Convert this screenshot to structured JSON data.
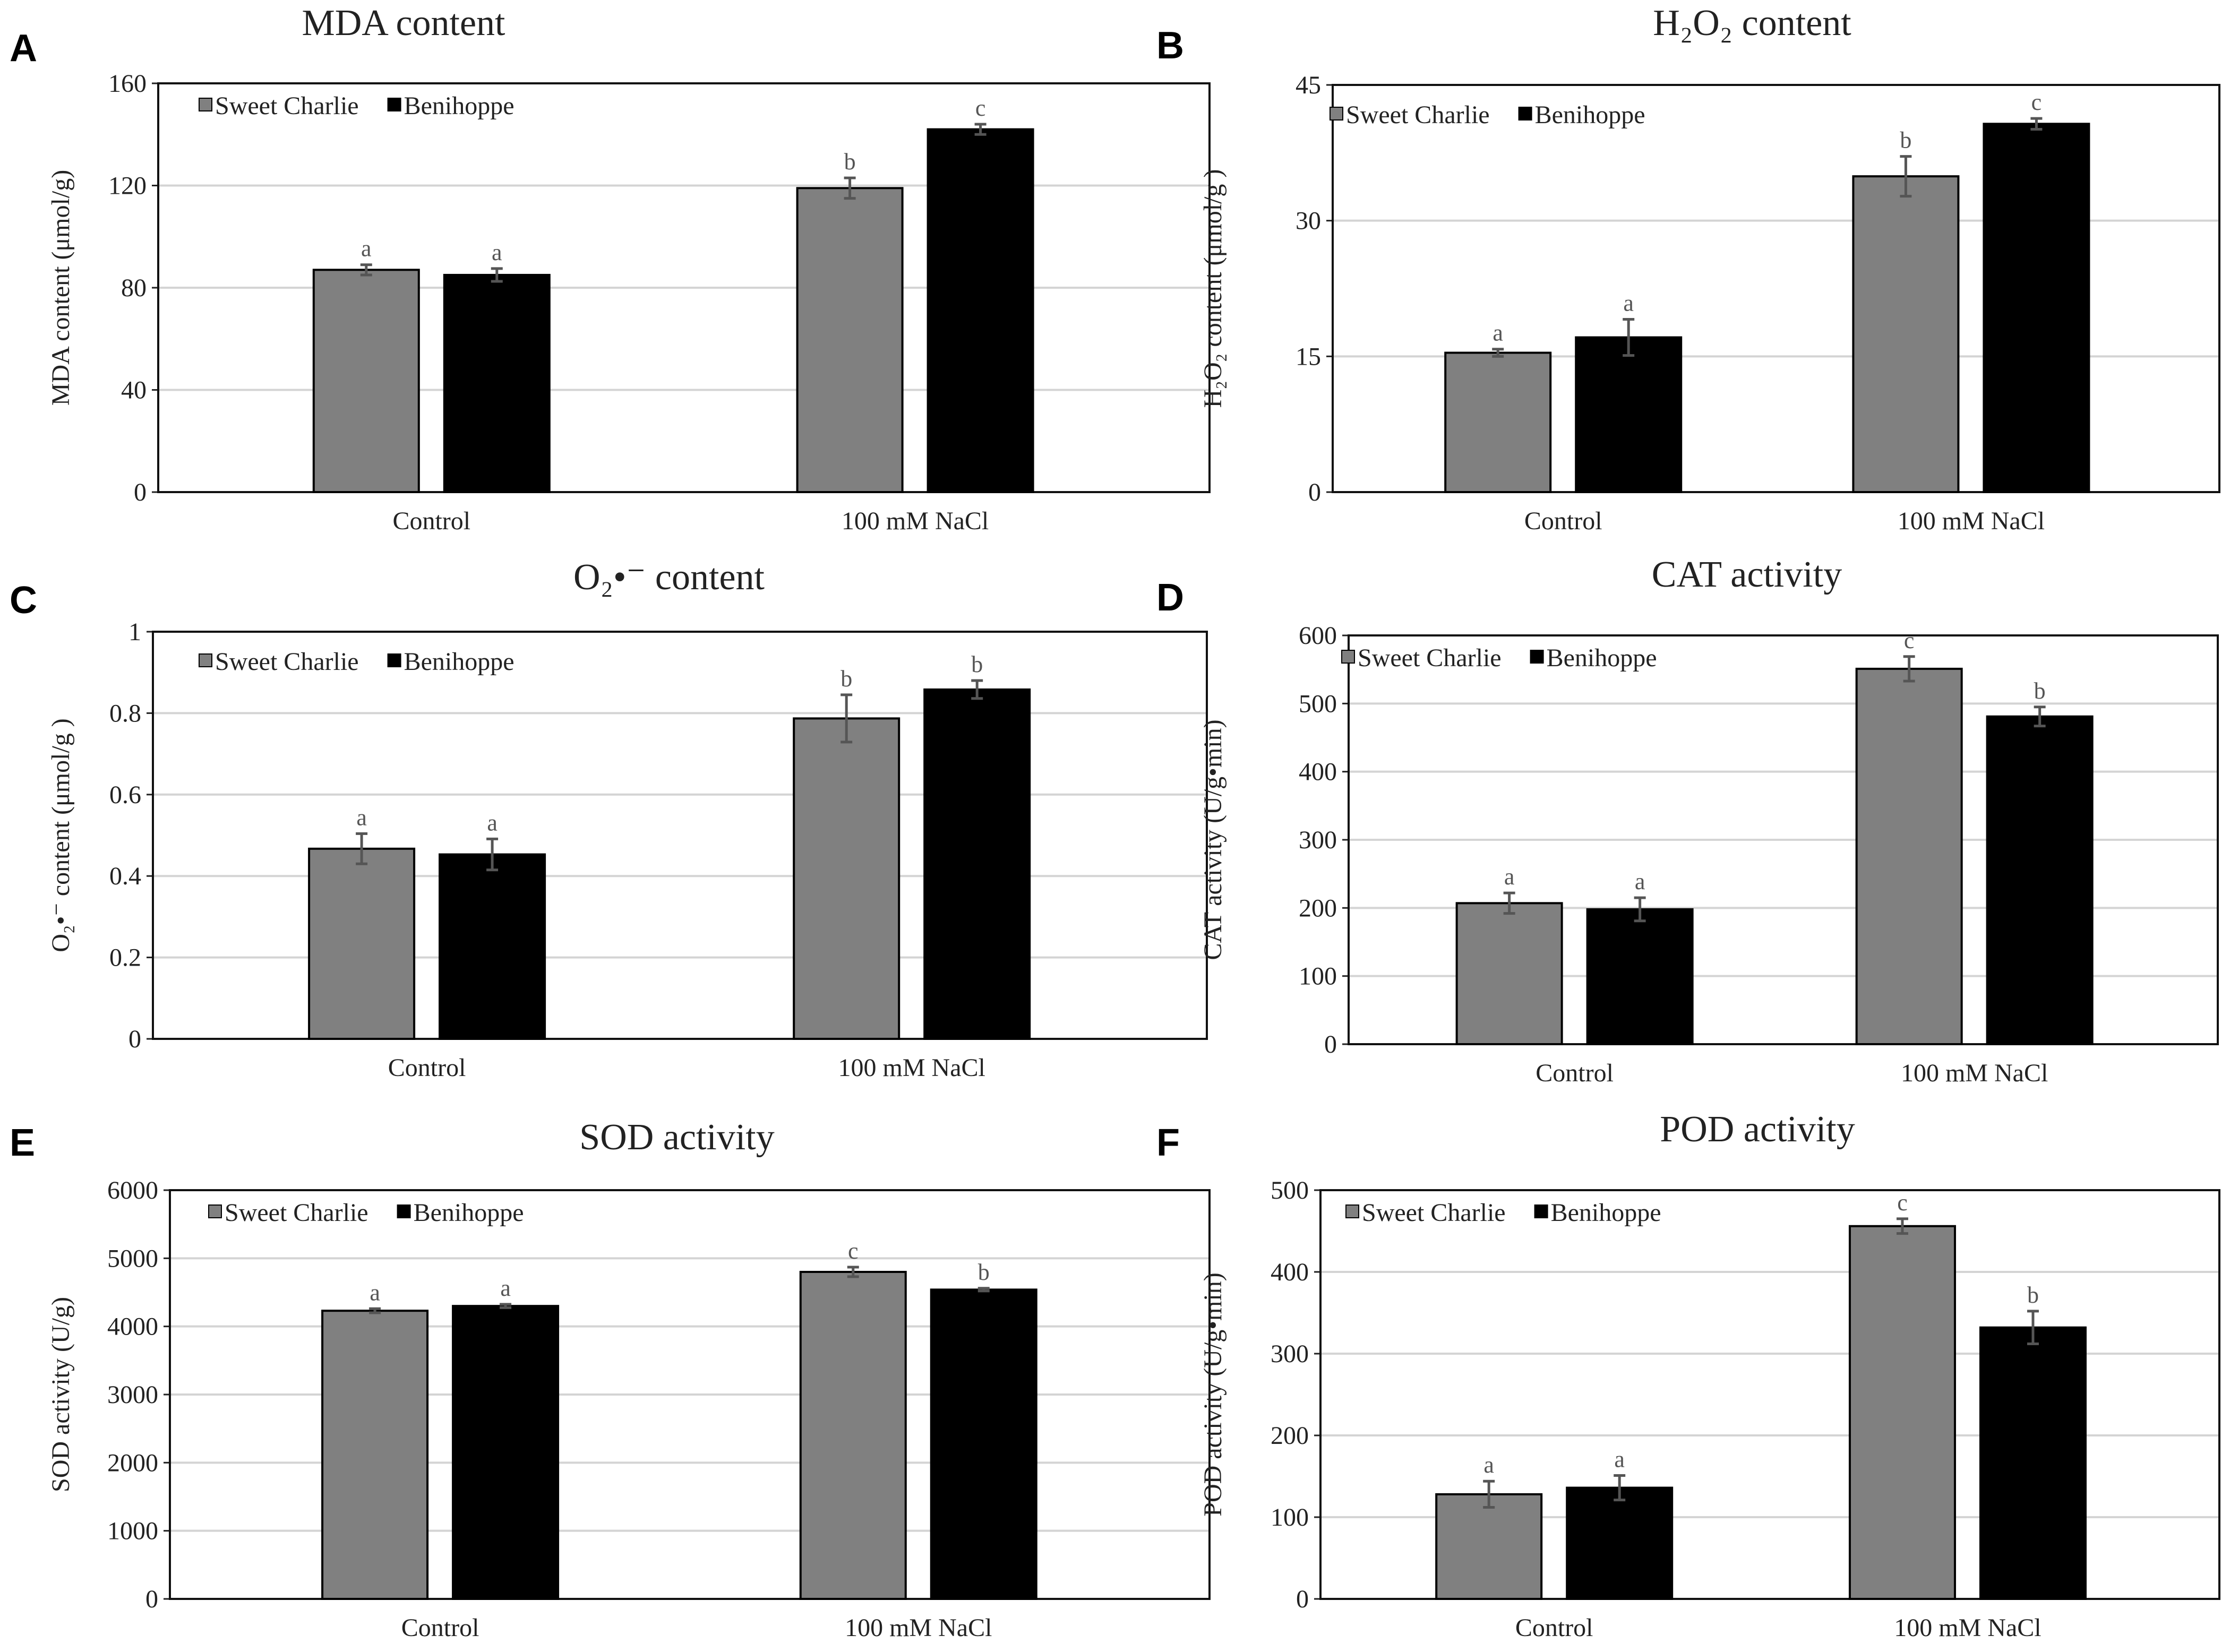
{
  "figure": {
    "legend": {
      "series": [
        {
          "name": "Sweet Charlie",
          "color": "#808080"
        },
        {
          "name": "Benihoppe",
          "color": "#000000"
        }
      ]
    }
  },
  "chart_data": [
    {
      "panel": "A",
      "type": "bar",
      "title": "MDA content",
      "ylabel": "MDA content (μmol/g)",
      "categories": [
        "Control",
        "100 mM NaCl"
      ],
      "ylim": [
        0,
        160
      ],
      "yticks": [
        "0",
        "40",
        "80",
        "120",
        "160"
      ],
      "grid": true,
      "series": [
        {
          "name": "Sweet Charlie",
          "values": [
            87,
            119
          ],
          "errors": [
            2,
            4
          ],
          "letters": [
            "a",
            "b"
          ]
        },
        {
          "name": "Benihoppe",
          "values": [
            85,
            142
          ],
          "errors": [
            2.5,
            2
          ],
          "letters": [
            "a",
            "c"
          ]
        }
      ]
    },
    {
      "panel": "B",
      "type": "bar",
      "title": "H₂O₂ content",
      "ylabel": "H₂O₂ content (μmol/g )",
      "categories": [
        "Control",
        "100 mM NaCl"
      ],
      "ylim": [
        0,
        45
      ],
      "yticks": [
        "0",
        "15",
        "30",
        "45"
      ],
      "grid": true,
      "series": [
        {
          "name": "Sweet Charlie",
          "values": [
            15.4,
            34.9
          ],
          "errors": [
            0.4,
            2.2
          ],
          "letters": [
            "a",
            "b"
          ]
        },
        {
          "name": "Benihoppe",
          "values": [
            17.1,
            40.7
          ],
          "errors": [
            2,
            0.6
          ],
          "letters": [
            "a",
            "c"
          ]
        }
      ]
    },
    {
      "panel": "C",
      "type": "bar",
      "title": "O₂•⁻ content",
      "ylabel": "O₂•⁻ content (μmol/g )",
      "categories": [
        "Control",
        "100 mM NaCl"
      ],
      "ylim": [
        0,
        1
      ],
      "yticks": [
        "0",
        "0.2",
        "0.4",
        "0.6",
        "0.8",
        "1"
      ],
      "grid": true,
      "series": [
        {
          "name": "Sweet Charlie",
          "values": [
            0.467,
            0.787
          ],
          "errors": [
            0.037,
            0.058
          ],
          "letters": [
            "a",
            "b"
          ]
        },
        {
          "name": "Benihoppe",
          "values": [
            0.453,
            0.858
          ],
          "errors": [
            0.038,
            0.022
          ],
          "letters": [
            "a",
            "b"
          ]
        }
      ]
    },
    {
      "panel": "D",
      "type": "bar",
      "title": "CAT activity",
      "ylabel": "CAT activity (U/g•min)",
      "categories": [
        "Control",
        "100 mM NaCl"
      ],
      "ylim": [
        0,
        600
      ],
      "yticks": [
        "0",
        "100",
        "200",
        "300",
        "400",
        "500",
        "600"
      ],
      "grid": true,
      "series": [
        {
          "name": "Sweet Charlie",
          "values": [
            207,
            551
          ],
          "errors": [
            15,
            18
          ],
          "letters": [
            "a",
            "c"
          ]
        },
        {
          "name": "Benihoppe",
          "values": [
            198,
            481
          ],
          "errors": [
            17,
            14
          ],
          "letters": [
            "a",
            "b"
          ]
        }
      ]
    },
    {
      "panel": "E",
      "type": "bar",
      "title": "SOD activity",
      "ylabel": "SOD activity (U/g)",
      "categories": [
        "Control",
        "100 mM NaCl"
      ],
      "ylim": [
        0,
        6000
      ],
      "yticks": [
        "0",
        "1000",
        "2000",
        "3000",
        "4000",
        "5000",
        "6000"
      ],
      "grid": true,
      "series": [
        {
          "name": "Sweet Charlie",
          "values": [
            4230,
            4800
          ],
          "errors": [
            30,
            70
          ],
          "letters": [
            "a",
            "c"
          ]
        },
        {
          "name": "Benihoppe",
          "values": [
            4300,
            4540
          ],
          "errors": [
            25,
            20
          ],
          "letters": [
            "a",
            "b"
          ]
        }
      ]
    },
    {
      "panel": "F",
      "type": "bar",
      "title": "POD activity",
      "ylabel": "POD activity (U/g•min)",
      "categories": [
        "Control",
        "100 mM NaCl"
      ],
      "ylim": [
        0,
        500
      ],
      "yticks": [
        "0",
        "100",
        "200",
        "300",
        "400",
        "500"
      ],
      "grid": true,
      "series": [
        {
          "name": "Sweet Charlie",
          "values": [
            128,
            456
          ],
          "errors": [
            16,
            9
          ],
          "letters": [
            "a",
            "c"
          ]
        },
        {
          "name": "Benihoppe",
          "values": [
            136,
            332
          ],
          "errors": [
            15,
            20
          ],
          "letters": [
            "a",
            "b"
          ]
        }
      ]
    }
  ]
}
